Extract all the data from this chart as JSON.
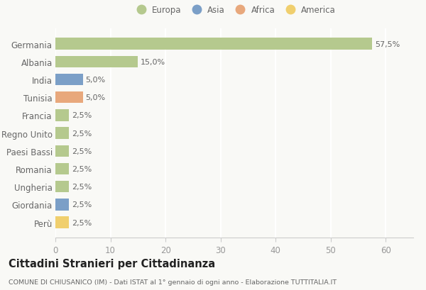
{
  "countries": [
    "Germania",
    "Albania",
    "India",
    "Tunisia",
    "Francia",
    "Regno Unito",
    "Paesi Bassi",
    "Romania",
    "Ungheria",
    "Giordania",
    "Perù"
  ],
  "values": [
    57.5,
    15.0,
    5.0,
    5.0,
    2.5,
    2.5,
    2.5,
    2.5,
    2.5,
    2.5,
    2.5
  ],
  "continents": [
    "Europa",
    "Europa",
    "Asia",
    "Africa",
    "Europa",
    "Europa",
    "Europa",
    "Europa",
    "Europa",
    "Asia",
    "America"
  ],
  "colors": {
    "Europa": "#b5c98e",
    "Asia": "#7b9fc7",
    "Africa": "#e8a87c",
    "America": "#f0cf6e"
  },
  "legend_order": [
    "Europa",
    "Asia",
    "Africa",
    "America"
  ],
  "labels": [
    "57,5%",
    "15,0%",
    "5,0%",
    "5,0%",
    "2,5%",
    "2,5%",
    "2,5%",
    "2,5%",
    "2,5%",
    "2,5%",
    "2,5%"
  ],
  "xlim": [
    0,
    65
  ],
  "xticks": [
    0,
    10,
    20,
    30,
    40,
    50,
    60
  ],
  "title": "Cittadini Stranieri per Cittadinanza",
  "subtitle": "COMUNE DI CHIUSANICO (IM) - Dati ISTAT al 1° gennaio di ogni anno - Elaborazione TUTTITALIA.IT",
  "background_color": "#f9f9f6"
}
